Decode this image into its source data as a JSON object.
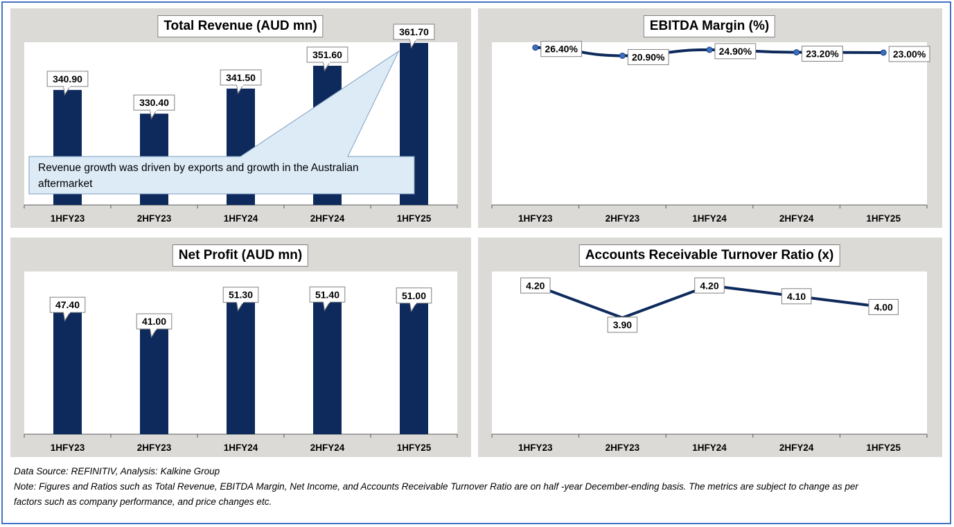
{
  "chart_data": [
    {
      "id": "revenue",
      "type": "bar",
      "title": "Total Revenue (AUD mn)",
      "categories": [
        "1HFY23",
        "2HFY23",
        "1HFY24",
        "2HFY24",
        "1HFY25"
      ],
      "values": [
        340.9,
        330.4,
        341.5,
        351.6,
        361.7
      ],
      "labels": [
        "340.90",
        "330.40",
        "341.50",
        "351.60",
        "361.70"
      ],
      "ylim": [
        290,
        362
      ],
      "color": "#0e2a5c",
      "annotation": "Revenue growth was driven by exports and growth in the Australian aftermarket"
    },
    {
      "id": "ebitda",
      "type": "line",
      "title": "EBITDA Margin (%)",
      "categories": [
        "1HFY23",
        "2HFY23",
        "1HFY24",
        "2HFY24",
        "1HFY25"
      ],
      "values": [
        26.4,
        20.9,
        24.9,
        23.2,
        23.0
      ],
      "labels": [
        "26.40%",
        "20.90%",
        "24.90%",
        "23.20%",
        "23.00%"
      ],
      "ylim": [
        -80,
        30
      ],
      "color": "#0e2a5c"
    },
    {
      "id": "netprofit",
      "type": "bar",
      "title": "Net Profit (AUD mn)",
      "categories": [
        "1HFY23",
        "2HFY23",
        "1HFY24",
        "2HFY24",
        "1HFY25"
      ],
      "values": [
        47.4,
        41.0,
        51.3,
        51.4,
        51.0
      ],
      "labels": [
        "47.40",
        "41.00",
        "51.30",
        "51.40",
        "51.00"
      ],
      "ylim": [
        0,
        63
      ],
      "color": "#0e2a5c"
    },
    {
      "id": "receivable",
      "type": "line",
      "title": "Accounts Receivable Turnover Ratio (x)",
      "categories": [
        "1HFY23",
        "2HFY23",
        "1HFY24",
        "2HFY24",
        "1HFY25"
      ],
      "values": [
        4.2,
        3.9,
        4.2,
        4.1,
        4.0
      ],
      "labels": [
        "4.20",
        "3.90",
        "4.20",
        "4.10",
        "4.00"
      ],
      "ylim": [
        2.82,
        4.33
      ],
      "color": "#0e2a5c"
    }
  ],
  "footer": {
    "source": "Data Source: REFINITIV, Analysis: Kalkine Group",
    "note_line1": "Note: Figures and Ratios such as Total Revenue, EBITDA Margin, Net Income, and Accounts Receivable Turnover Ratio are on half -year December-ending basis. The metrics are subject to change as per",
    "note_line2": "factors such as company performance, and price changes etc."
  }
}
